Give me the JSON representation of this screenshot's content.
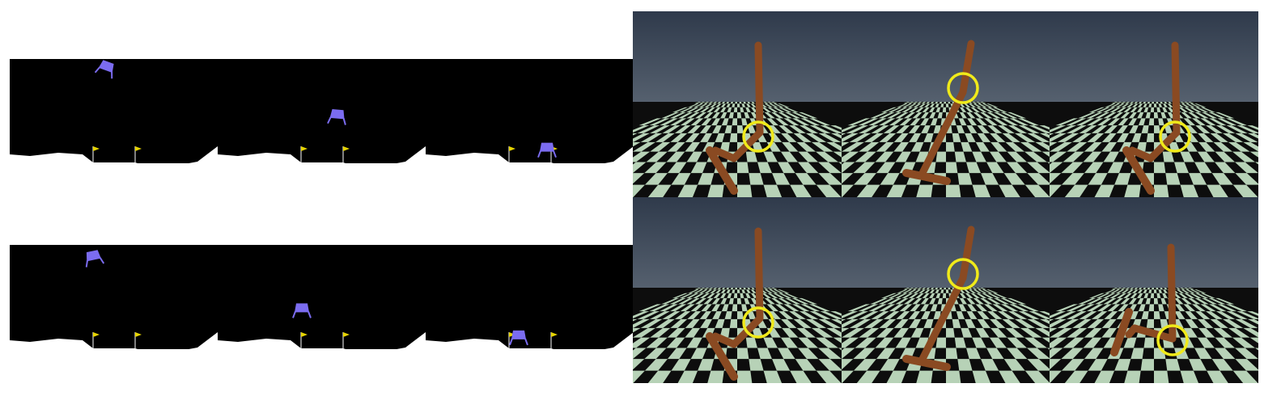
{
  "lander": {
    "rows": [
      {
        "name": "row-1",
        "frames": [
          {
            "lander_x": 120,
            "lander_tilt": 20,
            "lander_height": 0.97
          },
          {
            "lander_x": 148,
            "lander_tilt": 5,
            "lander_height": 0.42
          },
          {
            "lander_x": 150,
            "lander_tilt": 0,
            "lander_height": 0.04
          }
        ]
      },
      {
        "name": "row-2",
        "frames": [
          {
            "lander_x": 103,
            "lander_tilt": -12,
            "lander_height": 0.93
          },
          {
            "lander_x": 104,
            "lander_tilt": 0,
            "lander_height": 0.33
          },
          {
            "lander_x": 115,
            "lander_tilt": 0,
            "lander_height": 0.02
          }
        ]
      }
    ],
    "colors": {
      "sky": "#000000",
      "ground": "#ffffff",
      "lander": "#7b6cf0",
      "flag": "#e6d400"
    }
  },
  "hopper": {
    "rows": [
      {
        "name": "row-1",
        "frames": [
          {
            "pose": "crouched",
            "highlight": "knee"
          },
          {
            "pose": "leaning",
            "highlight": "hip"
          },
          {
            "pose": "crouched",
            "highlight": "knee"
          }
        ]
      },
      {
        "name": "row-2",
        "frames": [
          {
            "pose": "crouched",
            "highlight": "knee"
          },
          {
            "pose": "leaning",
            "highlight": "hip"
          },
          {
            "pose": "folded",
            "highlight": "ankle"
          }
        ]
      }
    ],
    "colors": {
      "sky_top": "#2f3a4b",
      "sky_bottom": "#56616f",
      "checker_light": "#b7d2b7",
      "checker_dark": "#0d0d0d",
      "body": "#8a4a22",
      "highlight": "#f0ea1a"
    }
  }
}
